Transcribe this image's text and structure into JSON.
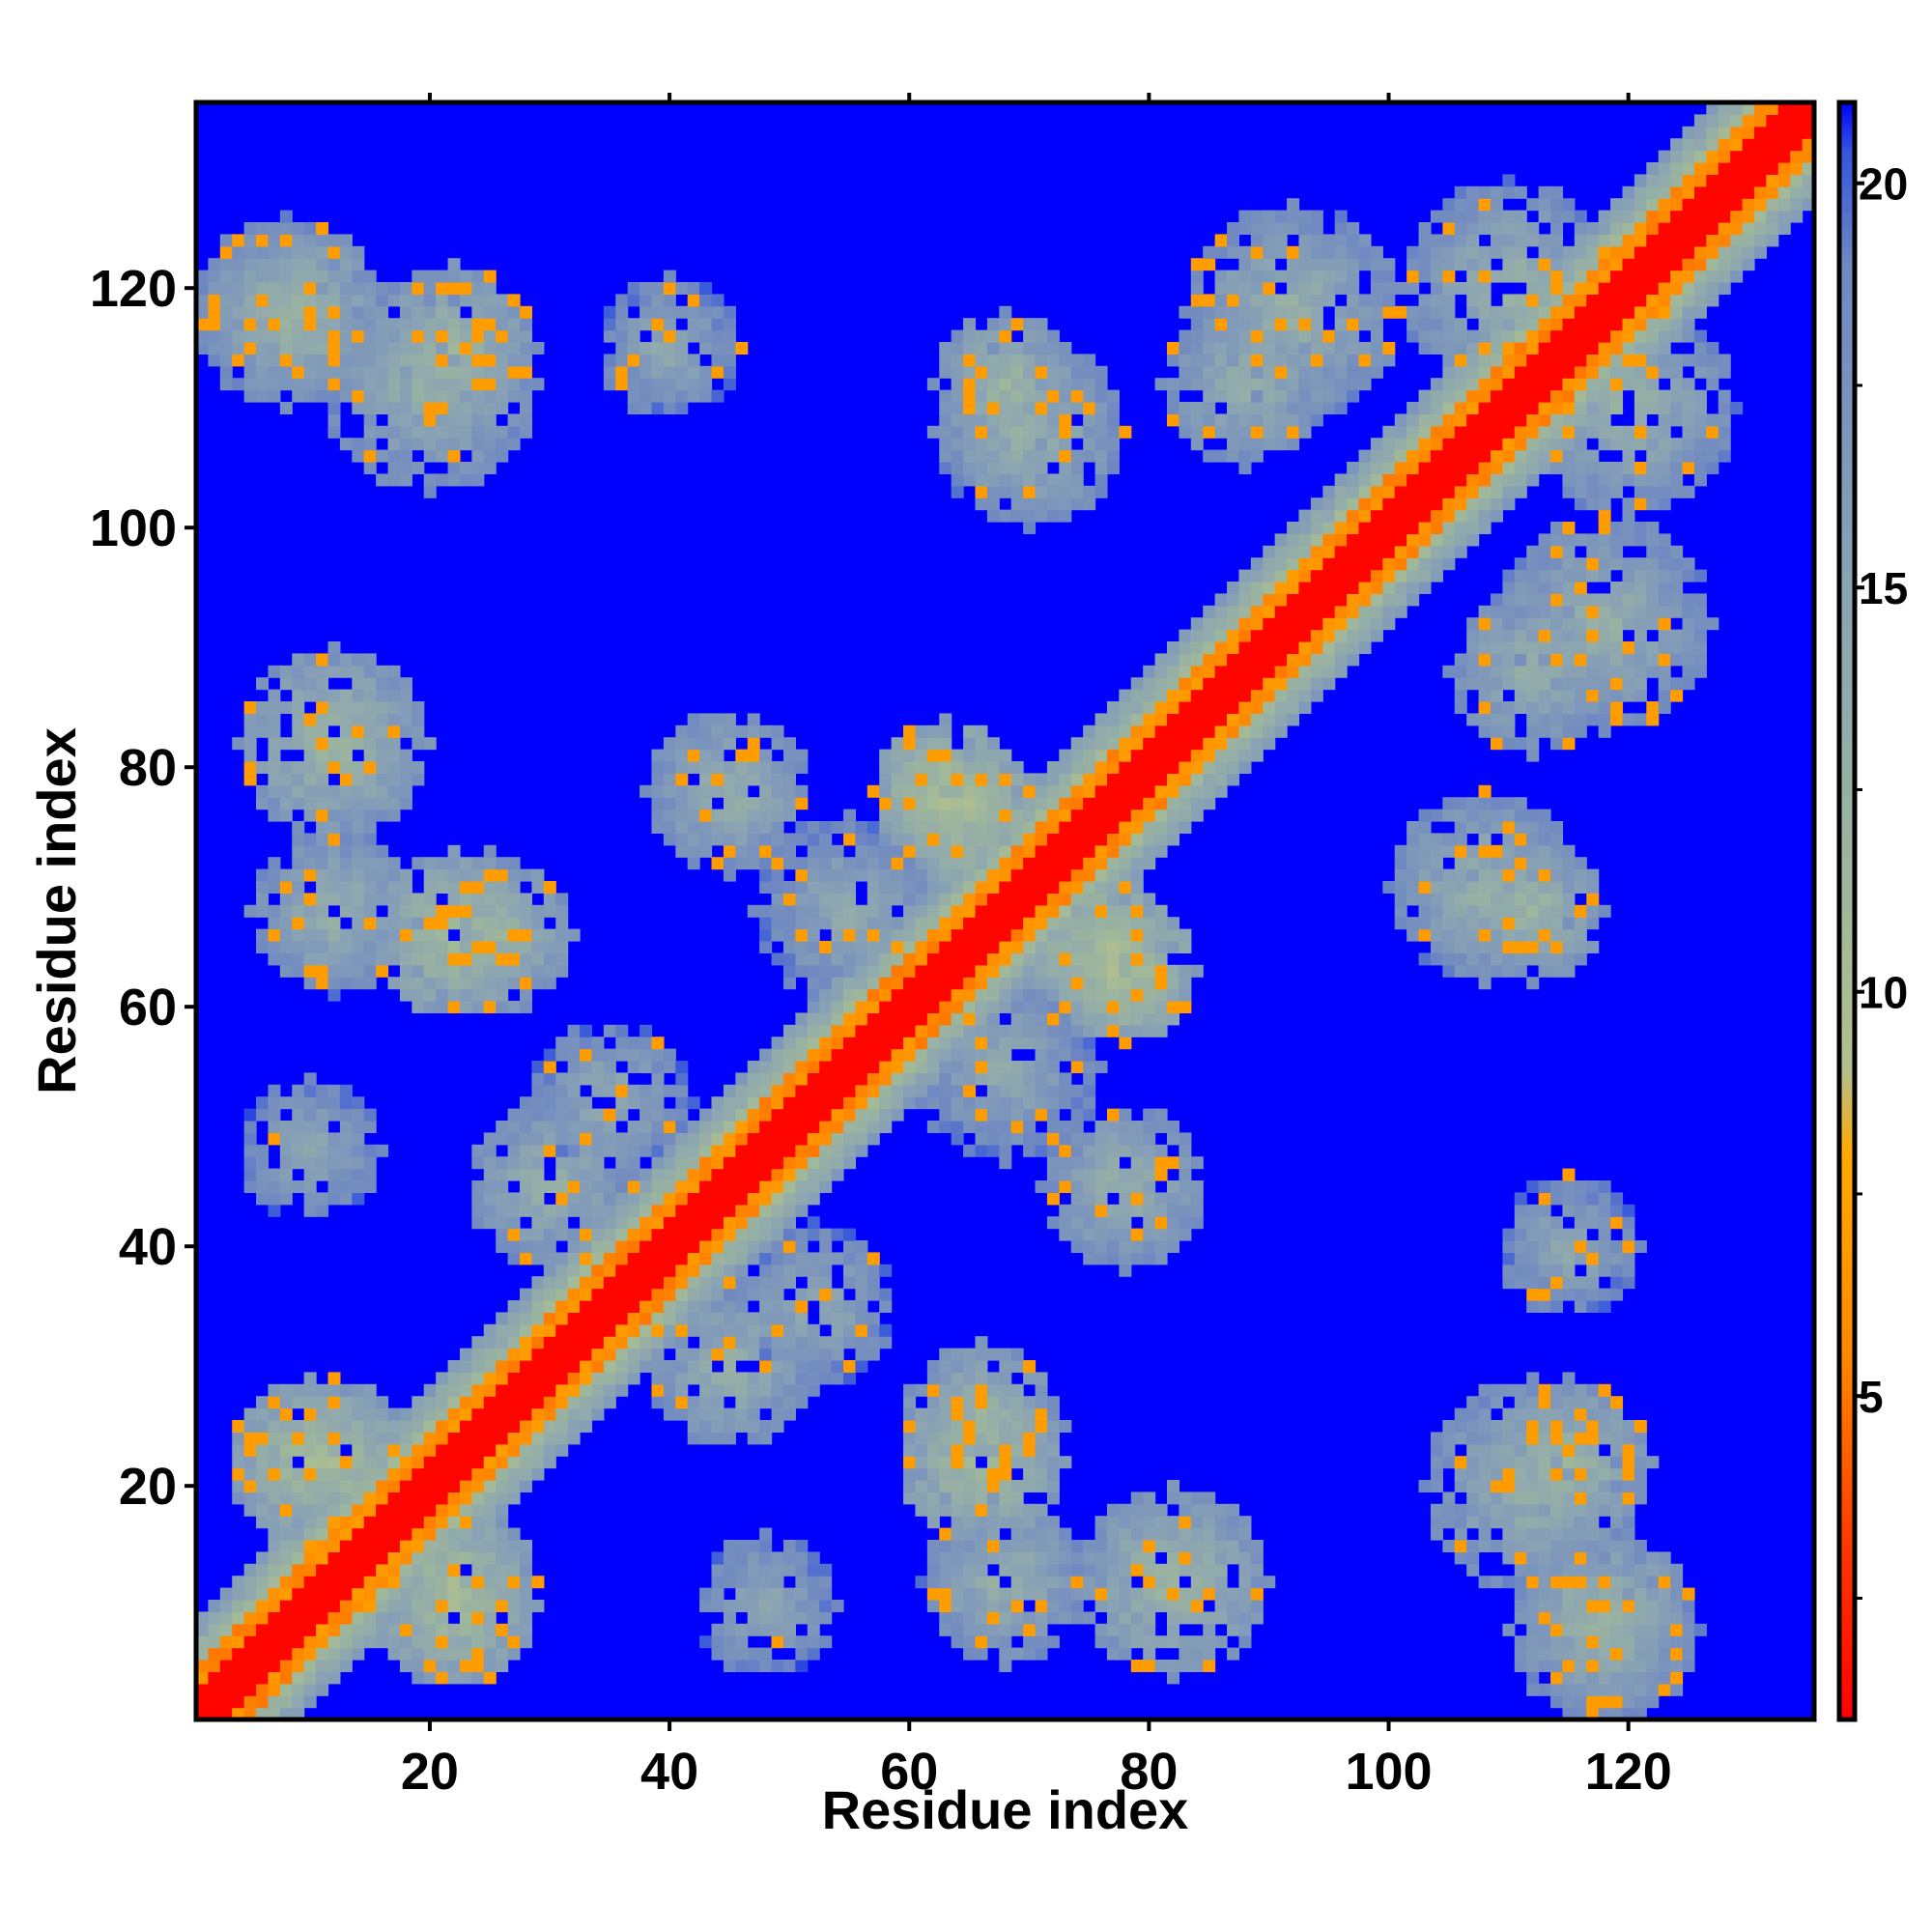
{
  "chart_data": {
    "type": "heatmap",
    "title": "",
    "xlabel": "Residue index",
    "ylabel": "Residue index",
    "xlim": [
      1,
      135
    ],
    "ylim": [
      1,
      135
    ],
    "x_ticks": [
      20,
      40,
      60,
      80,
      100,
      120
    ],
    "y_ticks": [
      20,
      40,
      60,
      80,
      100,
      120
    ],
    "colorbar": {
      "ticks": [
        5,
        10,
        15,
        20
      ],
      "range": [
        1,
        21
      ],
      "stops": [
        {
          "value": 1,
          "color": "#ff0000"
        },
        {
          "value": 3,
          "color": "#ff3300"
        },
        {
          "value": 5.5,
          "color": "#ff8800"
        },
        {
          "value": 8,
          "color": "#ffaa00"
        },
        {
          "value": 9,
          "color": "#b4bf8c"
        },
        {
          "value": 11,
          "color": "#a0b89a"
        },
        {
          "value": 15,
          "color": "#8aa3b4"
        },
        {
          "value": 19,
          "color": "#6f88c2"
        },
        {
          "value": 20.4,
          "color": "#3355dd"
        },
        {
          "value": 21,
          "color": "#0000ff"
        }
      ]
    },
    "background_color": "#0000ff",
    "contact_features": {
      "diagonal_band": {
        "core_width": 2,
        "inner_halo": 4,
        "outer_halo": 8
      },
      "blobs": [
        {
          "x": 22,
          "y": 115,
          "r": 7,
          "v": 10
        },
        {
          "x": 9,
          "y": 118,
          "r": 7,
          "v": 10
        },
        {
          "x": 68,
          "y": 112,
          "r": 6,
          "v": 10
        },
        {
          "x": 88,
          "y": 112,
          "r": 7,
          "v": 11
        },
        {
          "x": 120,
          "y": 110,
          "r": 9,
          "v": 11
        },
        {
          "x": 118,
          "y": 92,
          "r": 9,
          "v": 11
        },
        {
          "x": 108,
          "y": 70,
          "r": 8,
          "v": 11
        },
        {
          "x": 12,
          "y": 82,
          "r": 8,
          "v": 10
        },
        {
          "x": 12,
          "y": 68,
          "r": 7,
          "v": 11
        },
        {
          "x": 25,
          "y": 66,
          "r": 7,
          "v": 10
        },
        {
          "x": 63,
          "y": 78,
          "r": 6,
          "v": 8
        },
        {
          "x": 76,
          "y": 65,
          "r": 6,
          "v": 8
        },
        {
          "x": 78,
          "y": 45,
          "r": 7,
          "v": 11
        },
        {
          "x": 55,
          "y": 68,
          "r": 8,
          "v": 12
        },
        {
          "x": 35,
          "y": 52,
          "r": 7,
          "v": 12
        },
        {
          "x": 45,
          "y": 30,
          "r": 7,
          "v": 11
        },
        {
          "x": 12,
          "y": 22,
          "r": 7,
          "v": 9
        },
        {
          "x": 22,
          "y": 10,
          "r": 7,
          "v": 9
        },
        {
          "x": 66,
          "y": 22,
          "r": 7,
          "v": 9
        },
        {
          "x": 82,
          "y": 12,
          "r": 7,
          "v": 10
        },
        {
          "x": 112,
          "y": 20,
          "r": 9,
          "v": 11
        },
        {
          "x": 115,
          "y": 40,
          "r": 6,
          "v": 12
        },
        {
          "x": 118,
          "y": 8,
          "r": 8,
          "v": 11
        },
        {
          "x": 48,
          "y": 10,
          "r": 6,
          "v": 12
        }
      ]
    }
  }
}
